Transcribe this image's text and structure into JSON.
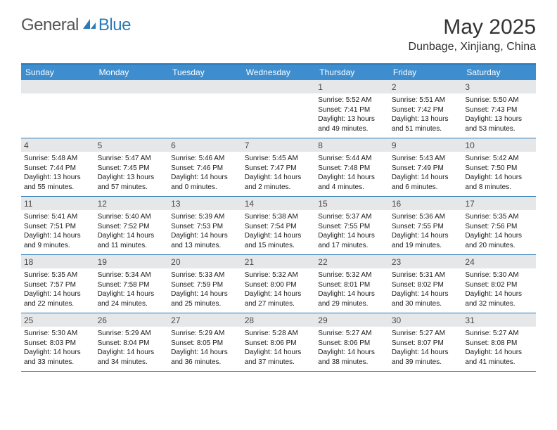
{
  "logo": {
    "text_general": "General",
    "text_blue": "Blue"
  },
  "header": {
    "month_year": "May 2025",
    "location": "Dunbage, Xinjiang, China"
  },
  "colors": {
    "brand_blue": "#2a7ab8",
    "header_bar": "#3e8ecf",
    "daynum_band": "#e6e7e9",
    "text_dark": "#1a1a1a",
    "text_gray": "#555555"
  },
  "weekdays": [
    "Sunday",
    "Monday",
    "Tuesday",
    "Wednesday",
    "Thursday",
    "Friday",
    "Saturday"
  ],
  "weeks": [
    [
      {
        "num": "",
        "sunrise": "",
        "sunset": "",
        "daylight": ""
      },
      {
        "num": "",
        "sunrise": "",
        "sunset": "",
        "daylight": ""
      },
      {
        "num": "",
        "sunrise": "",
        "sunset": "",
        "daylight": ""
      },
      {
        "num": "",
        "sunrise": "",
        "sunset": "",
        "daylight": ""
      },
      {
        "num": "1",
        "sunrise": "Sunrise: 5:52 AM",
        "sunset": "Sunset: 7:41 PM",
        "daylight": "Daylight: 13 hours and 49 minutes."
      },
      {
        "num": "2",
        "sunrise": "Sunrise: 5:51 AM",
        "sunset": "Sunset: 7:42 PM",
        "daylight": "Daylight: 13 hours and 51 minutes."
      },
      {
        "num": "3",
        "sunrise": "Sunrise: 5:50 AM",
        "sunset": "Sunset: 7:43 PM",
        "daylight": "Daylight: 13 hours and 53 minutes."
      }
    ],
    [
      {
        "num": "4",
        "sunrise": "Sunrise: 5:48 AM",
        "sunset": "Sunset: 7:44 PM",
        "daylight": "Daylight: 13 hours and 55 minutes."
      },
      {
        "num": "5",
        "sunrise": "Sunrise: 5:47 AM",
        "sunset": "Sunset: 7:45 PM",
        "daylight": "Daylight: 13 hours and 57 minutes."
      },
      {
        "num": "6",
        "sunrise": "Sunrise: 5:46 AM",
        "sunset": "Sunset: 7:46 PM",
        "daylight": "Daylight: 14 hours and 0 minutes."
      },
      {
        "num": "7",
        "sunrise": "Sunrise: 5:45 AM",
        "sunset": "Sunset: 7:47 PM",
        "daylight": "Daylight: 14 hours and 2 minutes."
      },
      {
        "num": "8",
        "sunrise": "Sunrise: 5:44 AM",
        "sunset": "Sunset: 7:48 PM",
        "daylight": "Daylight: 14 hours and 4 minutes."
      },
      {
        "num": "9",
        "sunrise": "Sunrise: 5:43 AM",
        "sunset": "Sunset: 7:49 PM",
        "daylight": "Daylight: 14 hours and 6 minutes."
      },
      {
        "num": "10",
        "sunrise": "Sunrise: 5:42 AM",
        "sunset": "Sunset: 7:50 PM",
        "daylight": "Daylight: 14 hours and 8 minutes."
      }
    ],
    [
      {
        "num": "11",
        "sunrise": "Sunrise: 5:41 AM",
        "sunset": "Sunset: 7:51 PM",
        "daylight": "Daylight: 14 hours and 9 minutes."
      },
      {
        "num": "12",
        "sunrise": "Sunrise: 5:40 AM",
        "sunset": "Sunset: 7:52 PM",
        "daylight": "Daylight: 14 hours and 11 minutes."
      },
      {
        "num": "13",
        "sunrise": "Sunrise: 5:39 AM",
        "sunset": "Sunset: 7:53 PM",
        "daylight": "Daylight: 14 hours and 13 minutes."
      },
      {
        "num": "14",
        "sunrise": "Sunrise: 5:38 AM",
        "sunset": "Sunset: 7:54 PM",
        "daylight": "Daylight: 14 hours and 15 minutes."
      },
      {
        "num": "15",
        "sunrise": "Sunrise: 5:37 AM",
        "sunset": "Sunset: 7:55 PM",
        "daylight": "Daylight: 14 hours and 17 minutes."
      },
      {
        "num": "16",
        "sunrise": "Sunrise: 5:36 AM",
        "sunset": "Sunset: 7:55 PM",
        "daylight": "Daylight: 14 hours and 19 minutes."
      },
      {
        "num": "17",
        "sunrise": "Sunrise: 5:35 AM",
        "sunset": "Sunset: 7:56 PM",
        "daylight": "Daylight: 14 hours and 20 minutes."
      }
    ],
    [
      {
        "num": "18",
        "sunrise": "Sunrise: 5:35 AM",
        "sunset": "Sunset: 7:57 PM",
        "daylight": "Daylight: 14 hours and 22 minutes."
      },
      {
        "num": "19",
        "sunrise": "Sunrise: 5:34 AM",
        "sunset": "Sunset: 7:58 PM",
        "daylight": "Daylight: 14 hours and 24 minutes."
      },
      {
        "num": "20",
        "sunrise": "Sunrise: 5:33 AM",
        "sunset": "Sunset: 7:59 PM",
        "daylight": "Daylight: 14 hours and 25 minutes."
      },
      {
        "num": "21",
        "sunrise": "Sunrise: 5:32 AM",
        "sunset": "Sunset: 8:00 PM",
        "daylight": "Daylight: 14 hours and 27 minutes."
      },
      {
        "num": "22",
        "sunrise": "Sunrise: 5:32 AM",
        "sunset": "Sunset: 8:01 PM",
        "daylight": "Daylight: 14 hours and 29 minutes."
      },
      {
        "num": "23",
        "sunrise": "Sunrise: 5:31 AM",
        "sunset": "Sunset: 8:02 PM",
        "daylight": "Daylight: 14 hours and 30 minutes."
      },
      {
        "num": "24",
        "sunrise": "Sunrise: 5:30 AM",
        "sunset": "Sunset: 8:02 PM",
        "daylight": "Daylight: 14 hours and 32 minutes."
      }
    ],
    [
      {
        "num": "25",
        "sunrise": "Sunrise: 5:30 AM",
        "sunset": "Sunset: 8:03 PM",
        "daylight": "Daylight: 14 hours and 33 minutes."
      },
      {
        "num": "26",
        "sunrise": "Sunrise: 5:29 AM",
        "sunset": "Sunset: 8:04 PM",
        "daylight": "Daylight: 14 hours and 34 minutes."
      },
      {
        "num": "27",
        "sunrise": "Sunrise: 5:29 AM",
        "sunset": "Sunset: 8:05 PM",
        "daylight": "Daylight: 14 hours and 36 minutes."
      },
      {
        "num": "28",
        "sunrise": "Sunrise: 5:28 AM",
        "sunset": "Sunset: 8:06 PM",
        "daylight": "Daylight: 14 hours and 37 minutes."
      },
      {
        "num": "29",
        "sunrise": "Sunrise: 5:27 AM",
        "sunset": "Sunset: 8:06 PM",
        "daylight": "Daylight: 14 hours and 38 minutes."
      },
      {
        "num": "30",
        "sunrise": "Sunrise: 5:27 AM",
        "sunset": "Sunset: 8:07 PM",
        "daylight": "Daylight: 14 hours and 39 minutes."
      },
      {
        "num": "31",
        "sunrise": "Sunrise: 5:27 AM",
        "sunset": "Sunset: 8:08 PM",
        "daylight": "Daylight: 14 hours and 41 minutes."
      }
    ]
  ]
}
